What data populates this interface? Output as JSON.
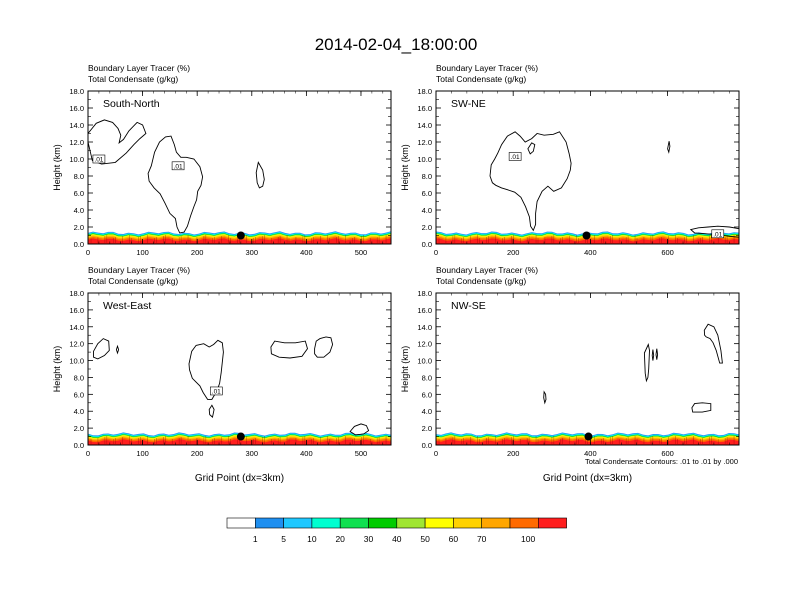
{
  "title": "2014-02-04_18:00:00",
  "footnote": "Total Condensate Contours: .01 to .01 by .000",
  "colorbar": {
    "colors": [
      "#ffffff",
      "#1f8ff0",
      "#1fc8ff",
      "#00ffd0",
      "#10e050",
      "#00cc00",
      "#a0e632",
      "#ffff00",
      "#ffd200",
      "#ffa600",
      "#ff6a00",
      "#ff1e1e"
    ],
    "labels": [
      "1",
      "5",
      "10",
      "20",
      "30",
      "40",
      "50",
      "60",
      "70",
      "100"
    ]
  },
  "chart_data": [
    {
      "type": "contour-cross-section",
      "name": "South-North",
      "title_line1": "Boundary Layer Tracer   (%)",
      "title_line2": "Total Condensate   (g/kg)",
      "ylabel": "Height (km)",
      "xlabel": "",
      "ylim": [
        0,
        18
      ],
      "yticks": [
        "0.0",
        "2.0",
        "4.0",
        "6.0",
        "8.0",
        "10.0",
        "12.0",
        "14.0",
        "16.0",
        "18.0"
      ],
      "xlim": [
        0,
        555
      ],
      "xticks": [
        0,
        100,
        200,
        300,
        400,
        500
      ],
      "contour_label": ".01",
      "contour_labels": [
        {
          "x": 20,
          "y": 10.0
        },
        {
          "x": 165,
          "y": 9.2
        }
      ],
      "marker": {
        "x": 280,
        "y": 1.0
      },
      "boundary_layer_top_km": 1.3
    },
    {
      "type": "contour-cross-section",
      "name": "SW-NE",
      "title_line1": "Boundary Layer Tracer   (%)",
      "title_line2": "Total Condensate   (g/kg)",
      "ylabel": "Height (km)",
      "xlabel": "",
      "ylim": [
        0,
        18
      ],
      "yticks": [
        "0.0",
        "2.0",
        "4.0",
        "6.0",
        "8.0",
        "10.0",
        "12.0",
        "14.0",
        "16.0",
        "18.0"
      ],
      "xlim": [
        0,
        785
      ],
      "xticks": [
        0,
        200,
        400,
        600
      ],
      "contour_label": ".01",
      "contour_labels": [
        {
          "x": 205,
          "y": 10.3
        },
        {
          "x": 730,
          "y": 1.2
        }
      ],
      "marker": {
        "x": 390,
        "y": 1.0
      },
      "boundary_layer_top_km": 1.3
    },
    {
      "type": "contour-cross-section",
      "name": "West-East",
      "title_line1": "Boundary Layer Tracer   (%)",
      "title_line2": "Total Condensate   (g/kg)",
      "ylabel": "Height (km)",
      "xlabel": "Grid Point (dx=3km)",
      "ylim": [
        0,
        18
      ],
      "yticks": [
        "0.0",
        "2.0",
        "4.0",
        "6.0",
        "8.0",
        "10.0",
        "12.0",
        "14.0",
        "16.0",
        "18.0"
      ],
      "xlim": [
        0,
        555
      ],
      "xticks": [
        0,
        100,
        200,
        300,
        400,
        500
      ],
      "contour_label": ".01",
      "contour_labels": [
        {
          "x": 235,
          "y": 6.4
        }
      ],
      "marker": {
        "x": 280,
        "y": 1.0
      },
      "boundary_layer_top_km": 1.3
    },
    {
      "type": "contour-cross-section",
      "name": "NW-SE",
      "title_line1": "Boundary Layer Tracer   (%)",
      "title_line2": "Total Condensate   (g/kg)",
      "ylabel": "Height (km)",
      "xlabel": "Grid Point (dx=3km)",
      "ylim": [
        0,
        18
      ],
      "yticks": [
        "0.0",
        "2.0",
        "4.0",
        "6.0",
        "8.0",
        "10.0",
        "12.0",
        "14.0",
        "16.0",
        "18.0"
      ],
      "xlim": [
        0,
        785
      ],
      "xticks": [
        0,
        200,
        400,
        600
      ],
      "contour_label": ".01",
      "contour_labels": [],
      "marker": {
        "x": 395,
        "y": 1.0
      },
      "boundary_layer_top_km": 1.3
    }
  ]
}
